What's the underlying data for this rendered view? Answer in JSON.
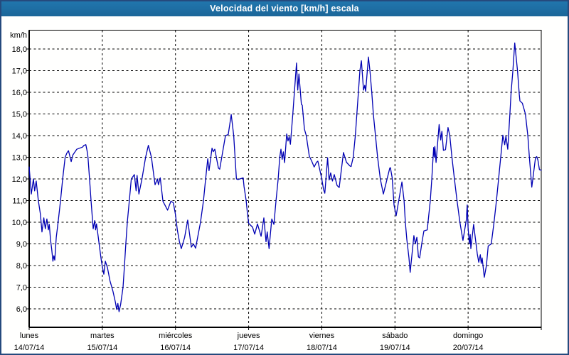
{
  "window": {
    "title": "Velocidad del viento [km/h] escala"
  },
  "colors": {
    "titlebar_bg": "#1d6fa5",
    "frame_border": "#254a7d",
    "line_color": "#0000b3",
    "grid_color": "#000000",
    "plot_bg": "#fffffe"
  },
  "chart_data": {
    "type": "line",
    "title": "Velocidad del viento [km/h] escala",
    "ylabel": "km/h",
    "xlabel": "",
    "grid": "dashed",
    "legend": "none",
    "ylim": [
      5.15,
      18.85
    ],
    "x_range_hours": [
      0,
      168
    ],
    "y_ticks": [
      {
        "value": 18,
        "label": "18,0"
      },
      {
        "value": 17,
        "label": "17,0"
      },
      {
        "value": 16,
        "label": "16,0"
      },
      {
        "value": 15,
        "label": "15,0"
      },
      {
        "value": 14,
        "label": "14,0"
      },
      {
        "value": 13,
        "label": "13,0"
      },
      {
        "value": 12,
        "label": "12,0"
      },
      {
        "value": 11,
        "label": "11,0"
      },
      {
        "value": 10,
        "label": "10,0"
      },
      {
        "value": 9,
        "label": "9,0"
      },
      {
        "value": 8,
        "label": "8,0"
      },
      {
        "value": 7,
        "label": "7,0"
      },
      {
        "value": 6,
        "label": "6,0"
      }
    ],
    "x_days": [
      {
        "name": "lunes",
        "date": "14/07/14"
      },
      {
        "name": "martes",
        "date": "15/07/14"
      },
      {
        "name": "miércoles",
        "date": "16/07/14"
      },
      {
        "name": "jueves",
        "date": "17/07/14"
      },
      {
        "name": "viernes",
        "date": "18/07/14"
      },
      {
        "name": "sábado",
        "date": "19/07/14"
      },
      {
        "name": "domingo",
        "date": "20/07/14"
      }
    ],
    "series": [
      {
        "name": "Velocidad del viento",
        "color": "#0000b3",
        "points_hours_kmh": [
          [
            0,
            12.55
          ],
          [
            0.7,
            11.3
          ],
          [
            1.4,
            12
          ],
          [
            1.8,
            11.45
          ],
          [
            2.3,
            11.9
          ],
          [
            3,
            11
          ],
          [
            3.7,
            10.35
          ],
          [
            4.2,
            9.55
          ],
          [
            4.8,
            10.2
          ],
          [
            5.3,
            9.7
          ],
          [
            5.8,
            10.15
          ],
          [
            6.3,
            9.65
          ],
          [
            6.6,
            9.9
          ],
          [
            7,
            9.2
          ],
          [
            7.4,
            8.75
          ],
          [
            7.8,
            8.2
          ],
          [
            8.1,
            8.45
          ],
          [
            8.4,
            8.25
          ],
          [
            8.9,
            9.3
          ],
          [
            9.5,
            10
          ],
          [
            10.3,
            11
          ],
          [
            11,
            12
          ],
          [
            11.8,
            13
          ],
          [
            12.4,
            13.2
          ],
          [
            12.9,
            13.3
          ],
          [
            13.8,
            12.8
          ],
          [
            14.3,
            13.1
          ],
          [
            15.6,
            13.37
          ],
          [
            17.5,
            13.47
          ],
          [
            18,
            13.55
          ],
          [
            18.6,
            13.58
          ],
          [
            19,
            13.3
          ],
          [
            19.3,
            13
          ],
          [
            19.8,
            12
          ],
          [
            20.3,
            11
          ],
          [
            21,
            9.7
          ],
          [
            21.5,
            10.08
          ],
          [
            21.8,
            9.65
          ],
          [
            22.1,
            9.92
          ],
          [
            22.6,
            9.38
          ],
          [
            23.1,
            8.84
          ],
          [
            23.7,
            8.2
          ],
          [
            24,
            7.95
          ],
          [
            24.5,
            7.6
          ],
          [
            25,
            8.2
          ],
          [
            25.7,
            7.9
          ],
          [
            26.5,
            7.3
          ],
          [
            27.5,
            6.8
          ],
          [
            28.3,
            6.3
          ],
          [
            28.7,
            5.97
          ],
          [
            29.1,
            6.25
          ],
          [
            29.5,
            5.87
          ],
          [
            30,
            6.2
          ],
          [
            30.8,
            7
          ],
          [
            31.3,
            8.05
          ],
          [
            31.7,
            9
          ],
          [
            32.2,
            10
          ],
          [
            33,
            11.2
          ],
          [
            33.5,
            12
          ],
          [
            34.5,
            12.2
          ],
          [
            35.1,
            11.45
          ],
          [
            35.4,
            12.16
          ],
          [
            36,
            11.3
          ],
          [
            37,
            12
          ],
          [
            38.2,
            13
          ],
          [
            39.1,
            13.55
          ],
          [
            40.1,
            13
          ],
          [
            41.3,
            11.73
          ],
          [
            42.1,
            12
          ],
          [
            42.4,
            11.73
          ],
          [
            43,
            12.05
          ],
          [
            43.9,
            10.97
          ],
          [
            45.4,
            10.56
          ],
          [
            46.5,
            10.97
          ],
          [
            47.3,
            10.9
          ],
          [
            48,
            10.35
          ],
          [
            48.6,
            9.65
          ],
          [
            49.3,
            9.1
          ],
          [
            49.9,
            8.78
          ],
          [
            51,
            9.3
          ],
          [
            52,
            10.1
          ],
          [
            53.2,
            8.85
          ],
          [
            53.9,
            9
          ],
          [
            54.6,
            8.8
          ],
          [
            56.2,
            10
          ],
          [
            57.2,
            11
          ],
          [
            57.9,
            12
          ],
          [
            58.6,
            12.93
          ],
          [
            59,
            12.38
          ],
          [
            60,
            13.42
          ],
          [
            60.4,
            13.26
          ],
          [
            60.9,
            13.37
          ],
          [
            62.1,
            12.5
          ],
          [
            62.5,
            12.45
          ],
          [
            64.4,
            14
          ],
          [
            65.3,
            14.05
          ],
          [
            66.3,
            14.97
          ],
          [
            67.1,
            14
          ],
          [
            67.5,
            13.1
          ],
          [
            68,
            12
          ],
          [
            68.5,
            11.97
          ],
          [
            70.2,
            12.05
          ],
          [
            70.5,
            11.65
          ],
          [
            71.2,
            11
          ],
          [
            71.6,
            10.4
          ],
          [
            72,
            9.95
          ],
          [
            73.3,
            9.77
          ],
          [
            74,
            9.45
          ],
          [
            74.9,
            9.92
          ],
          [
            76.1,
            9.35
          ],
          [
            77,
            10.2
          ],
          [
            77.7,
            9.1
          ],
          [
            78.1,
            9.55
          ],
          [
            78.7,
            8.78
          ],
          [
            79.6,
            10.15
          ],
          [
            80.3,
            9.9
          ],
          [
            81,
            11
          ],
          [
            81.7,
            12
          ],
          [
            82.2,
            13
          ],
          [
            82.6,
            13.37
          ],
          [
            83,
            12.9
          ],
          [
            83.4,
            13.25
          ],
          [
            83.8,
            12.75
          ],
          [
            84.5,
            14.08
          ],
          [
            84.9,
            13.75
          ],
          [
            85.3,
            13.95
          ],
          [
            85.7,
            13.6
          ],
          [
            86.5,
            15
          ],
          [
            87,
            16
          ],
          [
            87.7,
            17.35
          ],
          [
            88.1,
            16.1
          ],
          [
            88.5,
            16.85
          ],
          [
            89,
            16
          ],
          [
            89.3,
            15.45
          ],
          [
            89.6,
            15.4
          ],
          [
            90.3,
            14.3
          ],
          [
            90.9,
            14
          ],
          [
            91.9,
            13.05
          ],
          [
            92.7,
            12.82
          ],
          [
            93.5,
            12.55
          ],
          [
            94.3,
            12.77
          ],
          [
            94.7,
            12.82
          ],
          [
            95.4,
            12.38
          ],
          [
            96,
            12
          ],
          [
            96.6,
            11.5
          ],
          [
            97,
            11.34
          ],
          [
            97.9,
            12.98
          ],
          [
            98.4,
            11.95
          ],
          [
            98.9,
            12.28
          ],
          [
            99.5,
            11.9
          ],
          [
            100.1,
            12.2
          ],
          [
            101,
            11.7
          ],
          [
            101.7,
            11.6
          ],
          [
            103.1,
            13.22
          ],
          [
            104.1,
            12.77
          ],
          [
            105.2,
            12.6
          ],
          [
            105.6,
            12.57
          ],
          [
            106.3,
            13
          ],
          [
            107,
            14
          ],
          [
            108,
            16
          ],
          [
            108.5,
            17
          ],
          [
            109,
            17.46
          ],
          [
            109.7,
            16.1
          ],
          [
            110.1,
            16.32
          ],
          [
            110.4,
            16.04
          ],
          [
            111.3,
            17.63
          ],
          [
            111.8,
            17
          ],
          [
            112.4,
            16
          ],
          [
            112.9,
            15
          ],
          [
            113.6,
            14
          ],
          [
            114.3,
            13
          ],
          [
            115.2,
            12
          ],
          [
            116.2,
            11.3
          ],
          [
            118.3,
            12.5
          ],
          [
            118.5,
            12.52
          ],
          [
            119.1,
            12.05
          ],
          [
            119.7,
            10.8
          ],
          [
            120.4,
            10.3
          ],
          [
            122.3,
            11.86
          ],
          [
            123,
            11
          ],
          [
            123.4,
            10
          ],
          [
            123.9,
            9.2
          ],
          [
            124.6,
            8.35
          ],
          [
            125,
            7.69
          ],
          [
            126.2,
            9.38
          ],
          [
            126.7,
            9
          ],
          [
            127.2,
            9.3
          ],
          [
            127.7,
            8.4
          ],
          [
            128.1,
            8.35
          ],
          [
            128.9,
            9.1
          ],
          [
            129.5,
            9.6
          ],
          [
            130.6,
            9.65
          ],
          [
            131.6,
            11
          ],
          [
            132.1,
            12
          ],
          [
            132.7,
            13.45
          ],
          [
            132.9,
            13
          ],
          [
            133.1,
            13.5
          ],
          [
            133.5,
            12.76
          ],
          [
            134.5,
            14.51
          ],
          [
            135,
            13.8
          ],
          [
            135.4,
            14.2
          ],
          [
            135.9,
            13.32
          ],
          [
            136.6,
            13.35
          ],
          [
            137.4,
            14.37
          ],
          [
            138,
            14
          ],
          [
            138.7,
            13
          ],
          [
            139.5,
            12
          ],
          [
            140.3,
            11.07
          ],
          [
            141.3,
            10
          ],
          [
            142.3,
            9.16
          ],
          [
            143.4,
            10.1
          ],
          [
            143.7,
            10.8
          ],
          [
            144,
            9.76
          ],
          [
            144.4,
            9
          ],
          [
            144.7,
            9.43
          ],
          [
            144.9,
            8.78
          ],
          [
            145.8,
            9.9
          ],
          [
            147,
            8.55
          ],
          [
            147.5,
            8.15
          ],
          [
            148,
            8.5
          ],
          [
            148.3,
            8.1
          ],
          [
            148.6,
            8.35
          ],
          [
            149.3,
            7.46
          ],
          [
            150,
            8
          ],
          [
            150.6,
            8.9
          ],
          [
            151.6,
            9
          ],
          [
            152.5,
            10
          ],
          [
            153.3,
            11
          ],
          [
            154,
            12
          ],
          [
            154.7,
            13
          ],
          [
            155.4,
            14.02
          ],
          [
            156,
            13.58
          ],
          [
            156.4,
            13.97
          ],
          [
            157,
            13.37
          ],
          [
            157.7,
            15
          ],
          [
            158.1,
            16
          ],
          [
            158.7,
            17
          ],
          [
            159.3,
            18.28
          ],
          [
            160.2,
            17
          ],
          [
            160.8,
            15.9
          ],
          [
            161,
            15.6
          ],
          [
            161.8,
            15.5
          ],
          [
            162.4,
            15.2
          ],
          [
            162.8,
            15
          ],
          [
            163.6,
            14
          ],
          [
            164.1,
            13
          ],
          [
            164.9,
            11.62
          ],
          [
            166.1,
            12.98
          ],
          [
            166.5,
            13.03
          ],
          [
            166.9,
            12.87
          ],
          [
            167.4,
            12.43
          ],
          [
            168,
            12.4
          ]
        ]
      }
    ]
  }
}
